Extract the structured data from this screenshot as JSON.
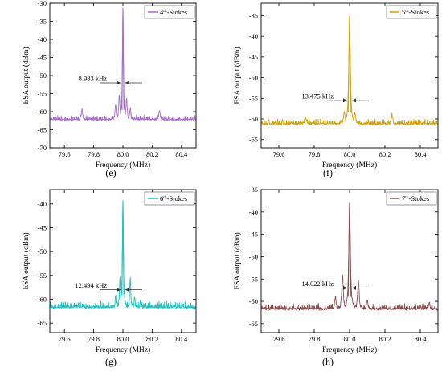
{
  "colors": {
    "e": "#a66bd4",
    "f": "#d4a200",
    "g": "#17c3c3",
    "h": "#8b4a4a"
  },
  "chart_data": [
    {
      "panel": "(e)",
      "type": "line",
      "legend_main": "4",
      "legend_sup": "th",
      "legend_rest": "-Stokes",
      "xlabel": "Frequency (MHz)",
      "ylabel": "ESA output (dBm)",
      "xlim": [
        79.5,
        80.5
      ],
      "ylim": [
        -70,
        -30
      ],
      "xticks": [
        79.6,
        79.8,
        80.0,
        80.2,
        80.4
      ],
      "xtick_labels": [
        "79.6",
        "79.8",
        "80.0",
        "80.2",
        "80.4"
      ],
      "yticks": [
        -70,
        -65,
        -60,
        -55,
        -50,
        -45,
        -40,
        -35,
        -30
      ],
      "ytick_labels": [
        "-70",
        "-65",
        "-60",
        "-55",
        "-50",
        "-45",
        "-40",
        "-35",
        "-30"
      ],
      "annotation": "8.983 kHz",
      "annotation_level": -52,
      "noise_floor": -62.5,
      "peaks": [
        {
          "x": 80.0,
          "y": -31.5,
          "w": 0.004
        },
        {
          "x": 79.975,
          "y": -55.5,
          "w": 0.005
        },
        {
          "x": 80.025,
          "y": -56,
          "w": 0.005
        },
        {
          "x": 79.95,
          "y": -58,
          "w": 0.005
        },
        {
          "x": 80.05,
          "y": -59,
          "w": 0.005
        },
        {
          "x": 79.72,
          "y": -59.5,
          "w": 0.006
        },
        {
          "x": 80.25,
          "y": -59.5,
          "w": 0.006
        }
      ]
    },
    {
      "panel": "(f)",
      "type": "line",
      "legend_main": "5",
      "legend_sup": "th",
      "legend_rest": "-Stokes",
      "xlabel": "Frequency (MHz)",
      "ylabel": "ESA output (dBm)",
      "xlim": [
        79.5,
        80.5
      ],
      "ylim": [
        -67,
        -32
      ],
      "xticks": [
        79.6,
        79.8,
        80.0,
        80.2,
        80.4
      ],
      "xtick_labels": [
        "79.6",
        "79.8",
        "80.0",
        "80.2",
        "80.4"
      ],
      "yticks": [
        -65,
        -60,
        -55,
        -50,
        -45,
        -40,
        -35
      ],
      "ytick_labels": [
        "-65",
        "-60",
        "-55",
        "-50",
        "-45",
        "-40",
        "-35"
      ],
      "annotation": "13.475 kHz",
      "annotation_level": -55.5,
      "noise_floor": -61.5,
      "peaks": [
        {
          "x": 80.0,
          "y": -35,
          "w": 0.005
        },
        {
          "x": 79.97,
          "y": -58,
          "w": 0.006
        },
        {
          "x": 80.03,
          "y": -58.5,
          "w": 0.006
        },
        {
          "x": 79.75,
          "y": -59.5,
          "w": 0.006
        },
        {
          "x": 80.24,
          "y": -59,
          "w": 0.006
        }
      ]
    },
    {
      "panel": "(g)",
      "type": "line",
      "legend_main": "6",
      "legend_sup": "th",
      "legend_rest": "-Stokes",
      "xlabel": "Frequency (MHz)",
      "ylabel": "ESA output (dBm)",
      "xlim": [
        79.5,
        80.5
      ],
      "ylim": [
        -67,
        -37
      ],
      "xticks": [
        79.6,
        79.8,
        80.0,
        80.2,
        80.4
      ],
      "xtick_labels": [
        "79.6",
        "79.8",
        "80.0",
        "80.2",
        "80.4"
      ],
      "yticks": [
        -65,
        -60,
        -55,
        -50,
        -45,
        -40
      ],
      "ytick_labels": [
        "-65",
        "-60",
        "-55",
        "-50",
        "-45",
        "-40"
      ],
      "annotation": "12.494 kHz",
      "annotation_level": -58,
      "noise_floor": -62,
      "peaks": [
        {
          "x": 80.0,
          "y": -39.5,
          "w": 0.004
        },
        {
          "x": 79.98,
          "y": -55,
          "w": 0.004
        },
        {
          "x": 80.05,
          "y": -55,
          "w": 0.004
        },
        {
          "x": 79.95,
          "y": -59,
          "w": 0.004
        },
        {
          "x": 80.08,
          "y": -59.5,
          "w": 0.004
        },
        {
          "x": 80.12,
          "y": -60.5,
          "w": 0.005
        }
      ]
    },
    {
      "panel": "(h)",
      "type": "line",
      "legend_main": "7",
      "legend_sup": "th",
      "legend_rest": "-Stokes",
      "xlabel": "Frequency (MHz)",
      "ylabel": "ESA output (dBm)",
      "xlim": [
        79.5,
        80.5
      ],
      "ylim": [
        -67,
        -35
      ],
      "xticks": [
        79.6,
        79.8,
        80.0,
        80.2,
        80.4
      ],
      "xtick_labels": [
        "79.6",
        "79.8",
        "80.0",
        "80.2",
        "80.4"
      ],
      "yticks": [
        -65,
        -60,
        -55,
        -50,
        -45,
        -40,
        -35
      ],
      "ytick_labels": [
        "-65",
        "-60",
        "-55",
        "-50",
        "-45",
        "-40",
        "-35"
      ],
      "annotation": "14.022 kHz",
      "annotation_level": -57,
      "noise_floor": -62,
      "peaks": [
        {
          "x": 80.0,
          "y": -38,
          "w": 0.005
        },
        {
          "x": 79.96,
          "y": -54,
          "w": 0.005
        },
        {
          "x": 80.05,
          "y": -55,
          "w": 0.005
        },
        {
          "x": 79.92,
          "y": -59,
          "w": 0.005
        },
        {
          "x": 80.1,
          "y": -59.5,
          "w": 0.005
        },
        {
          "x": 80.45,
          "y": -60,
          "w": 0.005
        }
      ]
    }
  ]
}
